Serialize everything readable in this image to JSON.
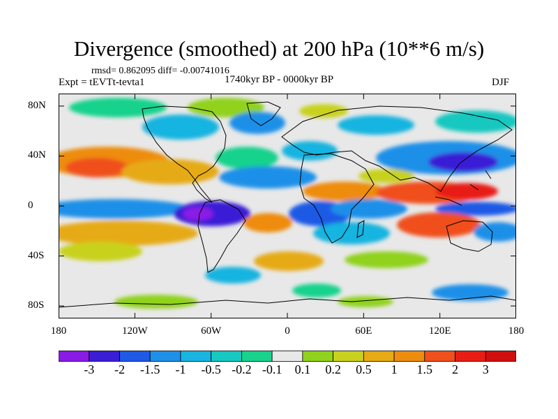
{
  "title": "Divergence (smoothed) at 200 hPa (10**6 m/s)",
  "stats": "rmsd= 0.862095 diff= -0.00741016",
  "experiment": "Expt = tEVTt-tevta1",
  "period": "1740kyr BP - 0000kyr BP",
  "season": "DJF",
  "map": {
    "lat_range": [
      -90,
      90
    ],
    "lon_range": [
      -180,
      180
    ],
    "lat_ticks": [
      "80N",
      "40N",
      "0",
      "40S",
      "80S"
    ],
    "lon_ticks": [
      "180",
      "120W",
      "60W",
      "0",
      "60E",
      "120E",
      "180"
    ],
    "lat_tick_values": [
      80,
      40,
      0,
      -40,
      -80
    ],
    "lon_tick_values": [
      -180,
      -120,
      -60,
      0,
      60,
      120,
      180
    ]
  },
  "colorbar": {
    "labels": [
      "-3",
      "-2",
      "-1.5",
      "-1",
      "-0.5",
      "-0.2",
      "-0.1",
      "0.1",
      "0.2",
      "0.5",
      "1",
      "1.5",
      "2",
      "3"
    ],
    "colors": [
      "#8a1ae6",
      "#3a1ed6",
      "#1e5ae6",
      "#1f90e8",
      "#19b4e0",
      "#16c8c0",
      "#19d28c",
      "#e8e8e8",
      "#90d21c",
      "#c8d21e",
      "#e6aa14",
      "#ee8c10",
      "#f0501c",
      "#e81e14",
      "#d0100e"
    ]
  },
  "palette_named": {
    "deep_neg": "#5a1ee0",
    "neg2": "#2a46dc",
    "neg15": "#1e78e8",
    "neg1": "#1ea0e6",
    "neg05": "#1cbede",
    "neg02": "#18cdb4",
    "neutral": "#e8e8e8",
    "pos02": "#96d21e",
    "pos05": "#d2c81e",
    "pos1": "#ebac16",
    "pos15": "#ef7e12",
    "pos2": "#ef4a18",
    "pos3": "#dc1a10"
  }
}
